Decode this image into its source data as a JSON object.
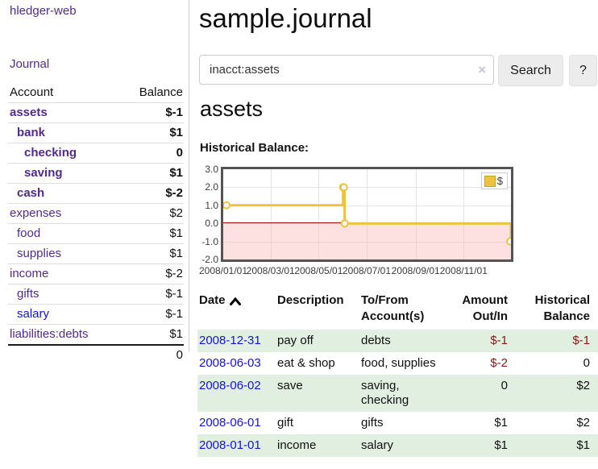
{
  "sidebar": {
    "app_title": "hledger-web",
    "nav_journal": "Journal",
    "accounts_table": {
      "account_header": "Account",
      "balance_header": "Balance",
      "rows": [
        {
          "name": "assets",
          "indent": 0,
          "bold": true,
          "balance": "$-1",
          "balance_style": "neg-strong"
        },
        {
          "name": "bank",
          "indent": 1,
          "bold": true,
          "balance": "$1",
          "balance_style": "normal"
        },
        {
          "name": "checking",
          "indent": 2,
          "bold": true,
          "balance": "0",
          "balance_style": "normal"
        },
        {
          "name": "saving",
          "indent": 2,
          "bold": true,
          "balance": "$1",
          "balance_style": "normal"
        },
        {
          "name": "cash",
          "indent": 1,
          "bold": true,
          "balance": "$-2",
          "balance_style": "neg-strong"
        },
        {
          "name": "expenses",
          "indent": 0,
          "bold": false,
          "balance": "$2",
          "balance_style": "normal"
        },
        {
          "name": "food",
          "indent": 1,
          "bold": false,
          "balance": "$1",
          "balance_style": "normal"
        },
        {
          "name": "supplies",
          "indent": 1,
          "bold": false,
          "balance": "$1",
          "balance_style": "normal"
        },
        {
          "name": "income",
          "indent": 0,
          "bold": false,
          "balance": "$-2",
          "balance_style": "neg-faint"
        },
        {
          "name": "gifts",
          "indent": 1,
          "bold": false,
          "balance": "$-1",
          "balance_style": "neg-faint"
        },
        {
          "name": "salary",
          "indent": 1,
          "bold": false,
          "balance": "$-1",
          "balance_style": "neg-faint",
          "link_color": "blue"
        },
        {
          "name": "liabilities:debts",
          "indent": 0,
          "bold": false,
          "balance": "$1",
          "balance_style": "normal"
        }
      ],
      "total": "0"
    }
  },
  "main": {
    "title": "sample.journal",
    "search": {
      "value": "inacct:assets",
      "clear_icon": "×",
      "search_button": "Search",
      "help_button": "?"
    },
    "account_heading": "assets",
    "chart_label": "Historical Balance:"
  },
  "chart_data": {
    "type": "line",
    "title": "Historical Balance:",
    "step": true,
    "series": [
      {
        "name": "$",
        "color": "#edc240",
        "points": [
          [
            "2008-01-01",
            1
          ],
          [
            "2008-06-01",
            2
          ],
          [
            "2008-06-02",
            2
          ],
          [
            "2008-06-03",
            0
          ],
          [
            "2008-12-31",
            -1
          ]
        ]
      }
    ],
    "ylim": [
      -2,
      3
    ],
    "y_ticks": [
      "3.0",
      "2.0",
      "1.0",
      "0.0",
      "-1.0",
      "-2.0"
    ],
    "x_ticks": [
      "2008/01/01",
      "2008/03/01",
      "2008/05/01",
      "2008/07/01",
      "2008/09/01",
      "2008/11/01"
    ],
    "x_range": [
      "2008-01-01",
      "2008-12-31"
    ],
    "grid": true,
    "legend_position": "top-right",
    "zero_line_color": "#990000",
    "marker": {
      "fill": "#ffffff",
      "radius": 4
    }
  },
  "register_table": {
    "headers": {
      "date": "Date",
      "description": "Description",
      "accounts": "To/From Account(s)",
      "amount": "Amount Out/In",
      "balance": "Historical Balance"
    },
    "sort_indicator": "ascending",
    "rows": [
      {
        "date": "2008-12-31",
        "description": "pay off",
        "accounts": "debts",
        "amount": "$-1",
        "amount_style": "neg",
        "balance": "$-1",
        "balance_style": "neg"
      },
      {
        "date": "2008-06-03",
        "description": "eat & shop",
        "accounts": "food, supplies",
        "amount": "$-2",
        "amount_style": "neg",
        "balance": "0",
        "balance_style": "normal"
      },
      {
        "date": "2008-06-02",
        "description": "save",
        "accounts": "saving, checking",
        "amount": "0",
        "amount_style": "normal",
        "balance": "$2",
        "balance_style": "normal"
      },
      {
        "date": "2008-06-01",
        "description": "gift",
        "accounts": "gifts",
        "amount": "$1",
        "amount_style": "normal",
        "balance": "$2",
        "balance_style": "normal"
      },
      {
        "date": "2008-01-01",
        "description": "income",
        "accounts": "salary",
        "amount": "$1",
        "amount_style": "normal",
        "balance": "$1",
        "balance_style": "normal"
      }
    ]
  },
  "colors": {
    "link_purple": "#512b8c",
    "link_blue": "#1414d6",
    "negative_strong": "#861919",
    "negative_faint": "#c28989",
    "row_green": "#e1efe1",
    "chart_line": "#edc240",
    "chart_frame": "#545454",
    "negative_region": "#f9dcdc",
    "zero_line": "#990000"
  }
}
